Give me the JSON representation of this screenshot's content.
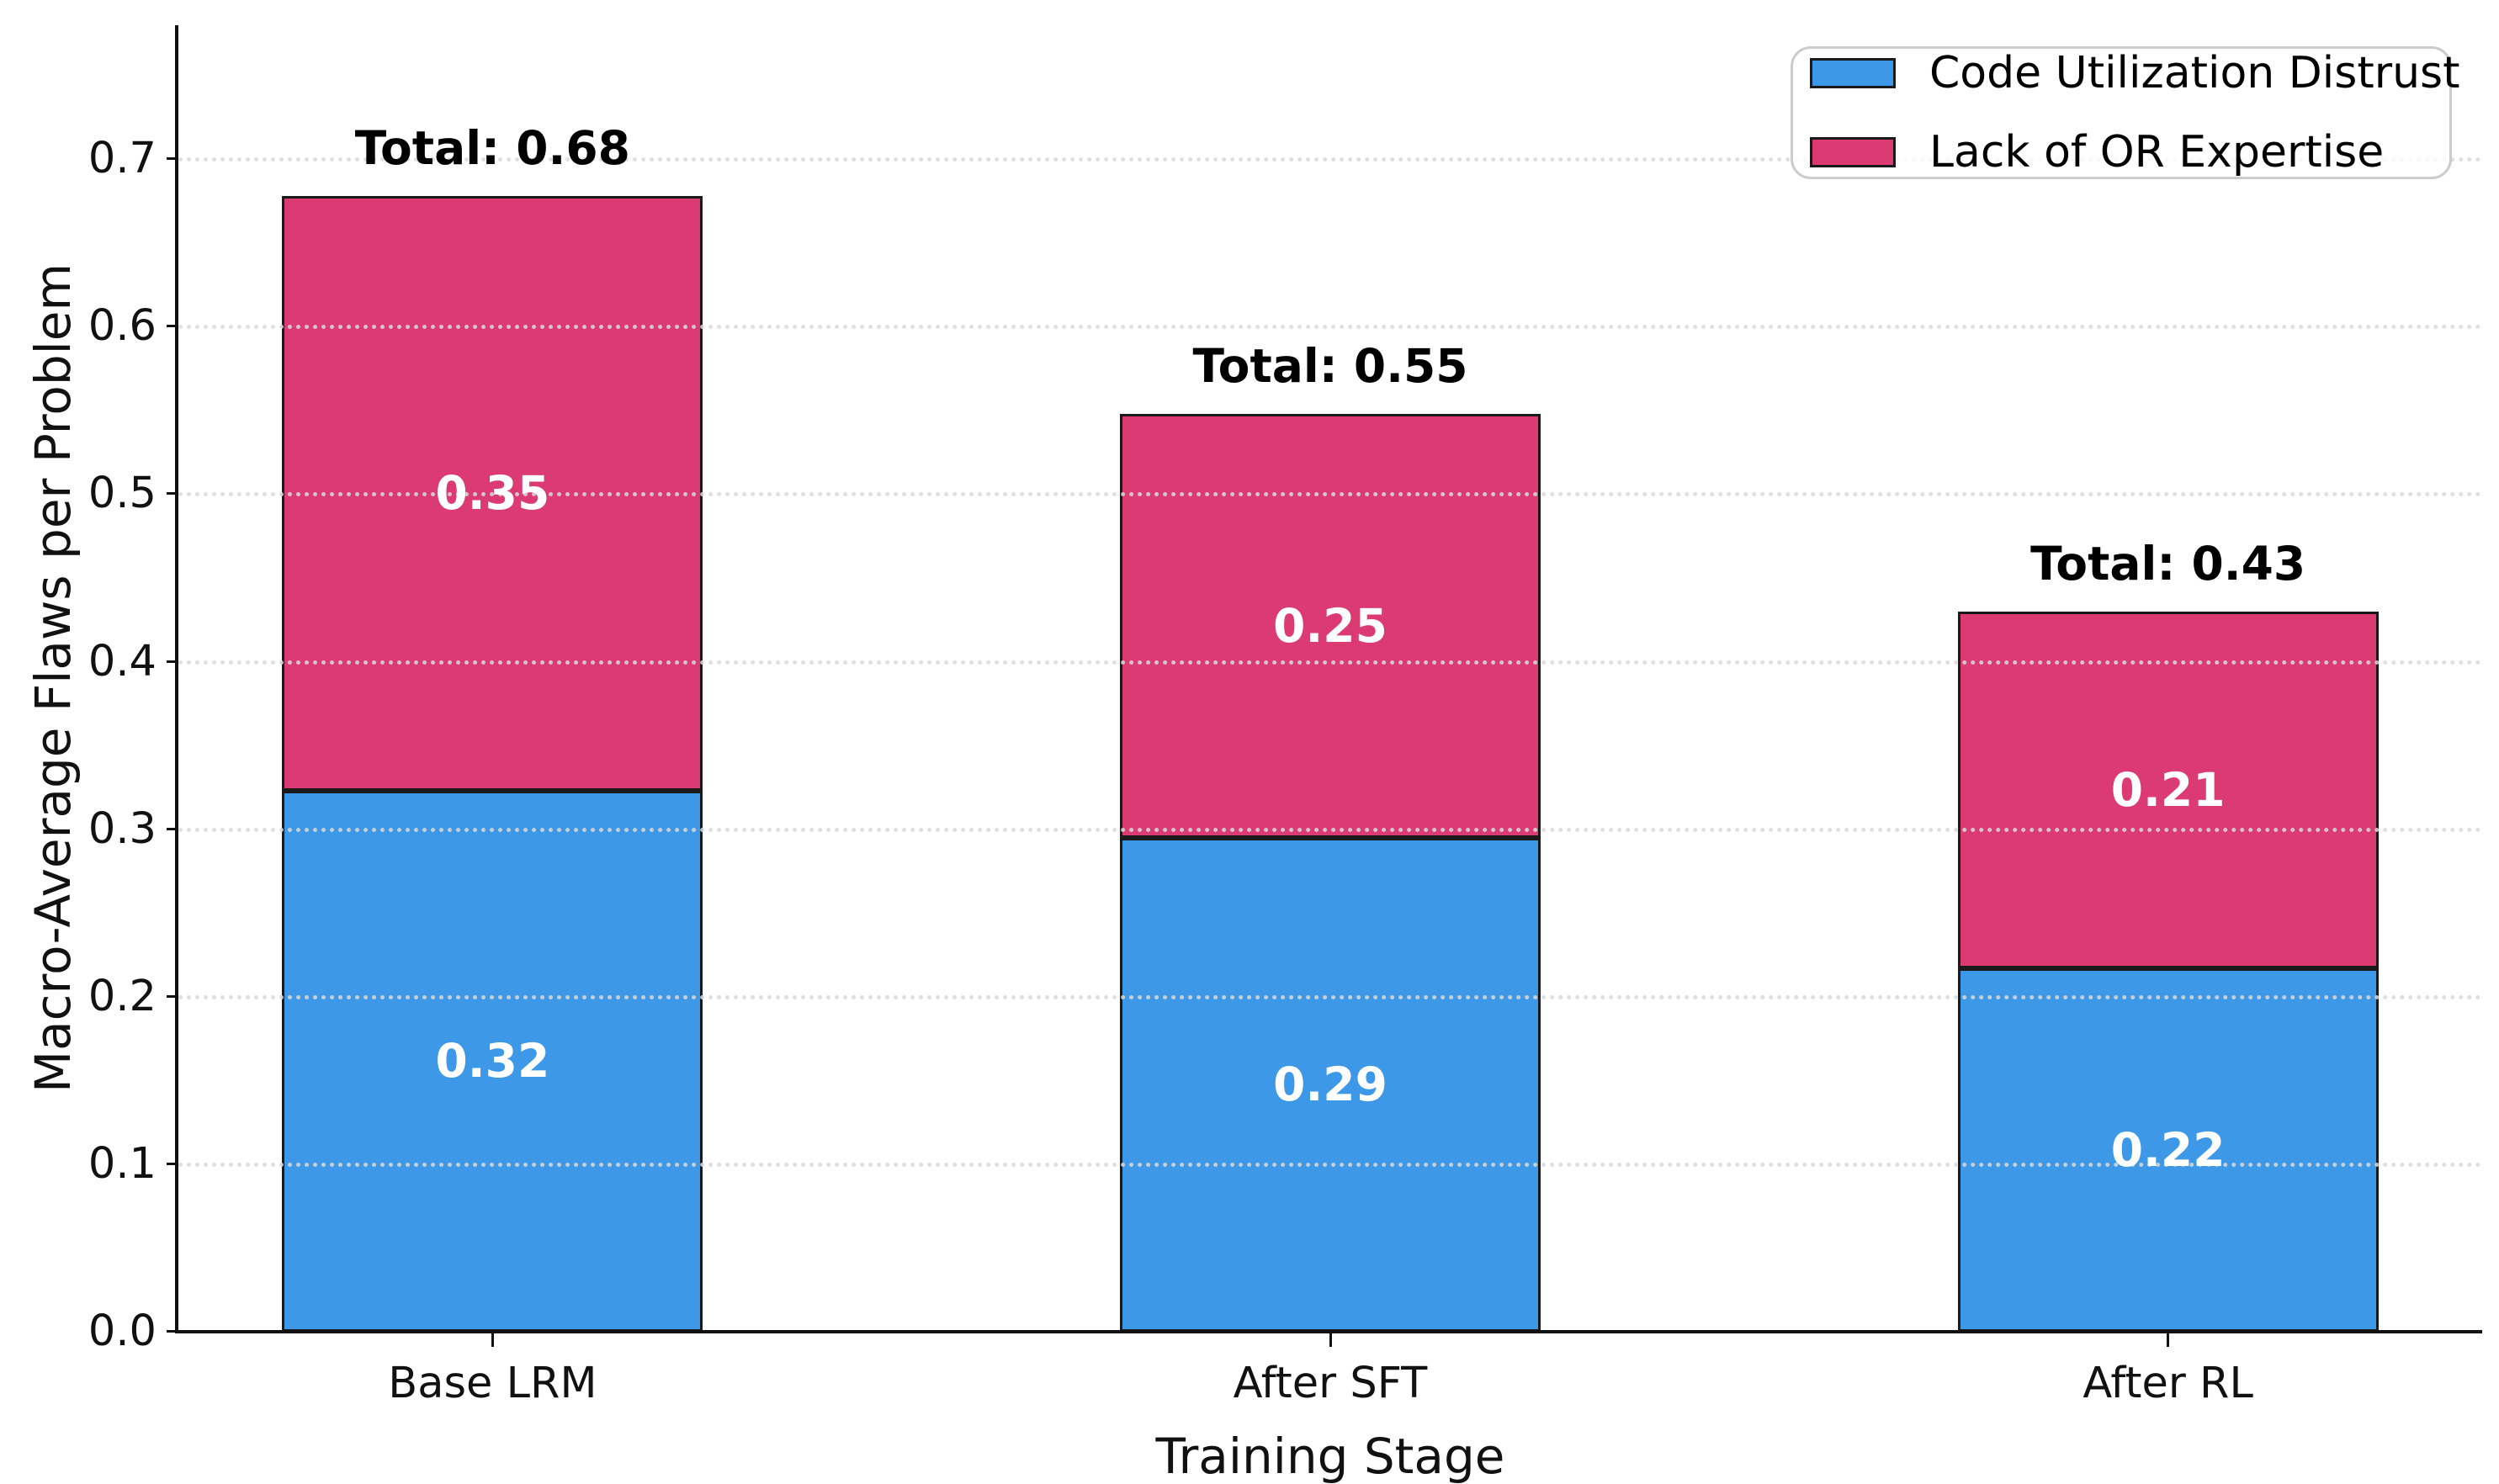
{
  "chart_data": {
    "type": "bar",
    "stacked": true,
    "xlabel": "Training Stage",
    "ylabel": "Macro-Average Flaws per Problem",
    "categories": [
      "Base LRM",
      "After SFT",
      "After RL"
    ],
    "series": [
      {
        "name": "Code Utilization Distrust",
        "color": "#3D99E8",
        "values": [
          0.323,
          0.295,
          0.217
        ],
        "labels": [
          "0.32",
          "0.29",
          "0.22"
        ]
      },
      {
        "name": "Lack of OR Expertise",
        "color": "#DB3A72",
        "values": [
          0.355,
          0.253,
          0.213
        ],
        "labels": [
          "0.35",
          "0.25",
          "0.21"
        ]
      }
    ],
    "totals": [
      {
        "label": "Total: 0.68",
        "value": 0.678
      },
      {
        "label": "Total: 0.55",
        "value": 0.548
      },
      {
        "label": "Total: 0.43",
        "value": 0.43
      }
    ],
    "yticks": [
      {
        "label": "0.0",
        "value": 0.0
      },
      {
        "label": "0.1",
        "value": 0.1
      },
      {
        "label": "0.2",
        "value": 0.2
      },
      {
        "label": "0.3",
        "value": 0.3
      },
      {
        "label": "0.4",
        "value": 0.4
      },
      {
        "label": "0.5",
        "value": 0.5
      },
      {
        "label": "0.6",
        "value": 0.6
      },
      {
        "label": "0.7",
        "value": 0.7
      }
    ],
    "ylim": [
      0,
      0.78
    ],
    "grid": {
      "axis": "y",
      "style": "dotted",
      "color": "#D9D9D9"
    },
    "bar_edge_color": "#1A1A1A",
    "legend": {
      "position": "upper right",
      "frame_color": "#CCCCCC"
    }
  }
}
